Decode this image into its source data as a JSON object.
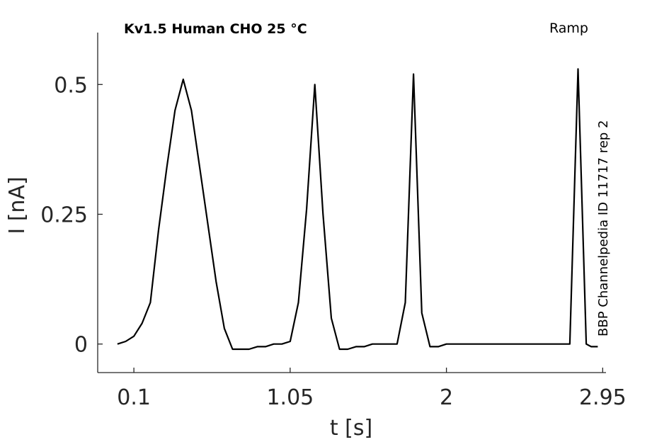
{
  "chart_data": {
    "type": "line",
    "title": "Kv1.5  Human  CHO  25 °C",
    "protocol_label": "Ramp",
    "side_label": "BBP Channelpedia ID 11717 rep 2",
    "xlabel": "t [s]",
    "ylabel": "I [nA]",
    "xlim": [
      -0.12,
      2.97
    ],
    "ylim": [
      -0.055,
      0.6
    ],
    "xticks": [
      0.1,
      1.05,
      2,
      2.95
    ],
    "xtick_labels": [
      "0.1",
      "1.05",
      "2",
      "2.95"
    ],
    "yticks": [
      0,
      0.25,
      0.5
    ],
    "ytick_labels": [
      "0",
      "0.25",
      "0.5"
    ],
    "grid": false,
    "series": [
      {
        "color": "#000000",
        "x": [
          0.0,
          0.05,
          0.1,
          0.15,
          0.2,
          0.25,
          0.3,
          0.35,
          0.4,
          0.45,
          0.5,
          0.55,
          0.6,
          0.65,
          0.7,
          0.75,
          0.8,
          0.85,
          0.9,
          0.95,
          1.0,
          1.05,
          1.1,
          1.15,
          1.2,
          1.25,
          1.3,
          1.35,
          1.4,
          1.45,
          1.5,
          1.55,
          1.6,
          1.65,
          1.7,
          1.75,
          1.8,
          1.85,
          1.9,
          1.95,
          2.0,
          2.05,
          2.1,
          2.15,
          2.2,
          2.25,
          2.3,
          2.35,
          2.4,
          2.45,
          2.5,
          2.55,
          2.6,
          2.65,
          2.7,
          2.75,
          2.8,
          2.85,
          2.88,
          2.92
        ],
        "y": [
          0.0,
          0.005,
          0.015,
          0.04,
          0.08,
          0.22,
          0.34,
          0.45,
          0.51,
          0.45,
          0.34,
          0.23,
          0.12,
          0.03,
          -0.01,
          -0.01,
          -0.01,
          -0.005,
          -0.005,
          0.0,
          0.0,
          0.005,
          0.08,
          0.26,
          0.5,
          0.25,
          0.05,
          -0.01,
          -0.01,
          -0.005,
          -0.005,
          0.0,
          0.0,
          0.0,
          0.0,
          0.08,
          0.52,
          0.06,
          -0.005,
          -0.005,
          0.0,
          0.0,
          0.0,
          0.0,
          0.0,
          0.0,
          0.0,
          0.0,
          0.0,
          0.0,
          0.0,
          0.0,
          0.0,
          0.0,
          0.0,
          0.0,
          0.53,
          0.0,
          -0.005,
          -0.005
        ]
      }
    ]
  }
}
